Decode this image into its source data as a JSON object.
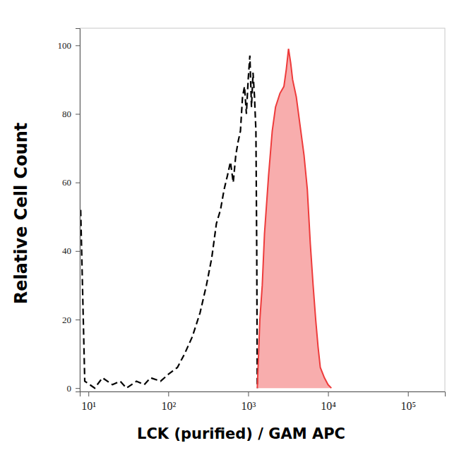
{
  "chart_data": {
    "type": "histogram_overlay",
    "xlabel": "LCK (purified) / GAM APC",
    "ylabel": "Relative Cell Count",
    "log": "x",
    "xlim": [
      7.8,
      290000
    ],
    "xticks": [
      {
        "value": 10,
        "label": "10¹"
      },
      {
        "value": 100,
        "label": "10²"
      },
      {
        "value": 1000,
        "label": "10³"
      },
      {
        "value": 10000,
        "label": "10⁴"
      },
      {
        "value": 100000,
        "label": "10⁵"
      }
    ],
    "ylim": [
      -1,
      105
    ],
    "yticks": [
      0,
      20,
      40,
      60,
      80,
      100
    ],
    "series": [
      {
        "type": "line",
        "color": "#000000",
        "line_style": "dashed",
        "x": [
          8,
          9,
          12,
          15,
          20,
          25,
          30,
          40,
          50,
          60,
          80,
          100,
          130,
          160,
          200,
          250,
          300,
          350,
          400,
          450,
          500,
          550,
          600,
          650,
          700,
          750,
          800,
          850,
          900,
          950,
          1000,
          1050,
          1100,
          1150,
          1200,
          1250,
          1280,
          1300
        ],
        "values": [
          52,
          2,
          0,
          3,
          1,
          2,
          0,
          2,
          1,
          3,
          2,
          4,
          6,
          10,
          15,
          22,
          30,
          38,
          48,
          52,
          58,
          62,
          66,
          60,
          68,
          72,
          75,
          85,
          88,
          80,
          90,
          97,
          82,
          92,
          85,
          75,
          40,
          0
        ]
      },
      {
        "type": "area",
        "color": "#ee3b3b",
        "line_style": "solid",
        "x": [
          1300,
          1350,
          1400,
          1500,
          1600,
          1800,
          2000,
          2200,
          2500,
          2800,
          3000,
          3200,
          3400,
          3600,
          4000,
          4500,
          5000,
          5500,
          6000,
          6500,
          7000,
          7500,
          8000,
          9000,
          10000,
          11000
        ],
        "values": [
          0,
          10,
          20,
          30,
          45,
          62,
          75,
          82,
          86,
          88,
          93,
          99,
          95,
          90,
          85,
          76,
          68,
          58,
          42,
          30,
          20,
          12,
          6,
          3,
          1,
          0
        ]
      }
    ]
  }
}
